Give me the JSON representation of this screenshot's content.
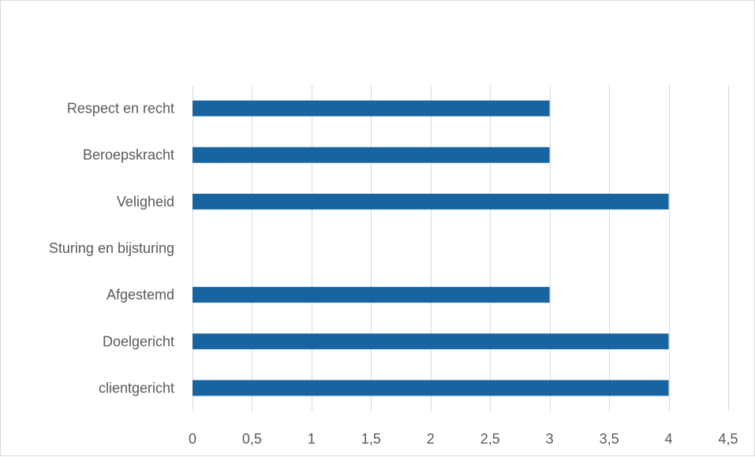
{
  "chart_data": {
    "type": "bar",
    "orientation": "horizontal",
    "title": "",
    "xlabel": "",
    "ylabel": "",
    "categories": [
      "Respect en recht",
      "Beroepskracht",
      "Veligheid",
      "Sturing en bijsturing",
      "Afgestemd",
      "Doelgericht",
      "clientgericht"
    ],
    "values": [
      3,
      3,
      4,
      null,
      3,
      4,
      4
    ],
    "xlim": [
      0,
      4.5
    ],
    "x_ticks": [
      "0",
      "0,5",
      "1",
      "1,5",
      "2",
      "2,5",
      "3",
      "3,5",
      "4",
      "4,5"
    ],
    "grid": "vertical",
    "legend": "none",
    "bar_color": "#1764a0",
    "grid_color": "#d9d9d9",
    "label_color": "#595959"
  }
}
